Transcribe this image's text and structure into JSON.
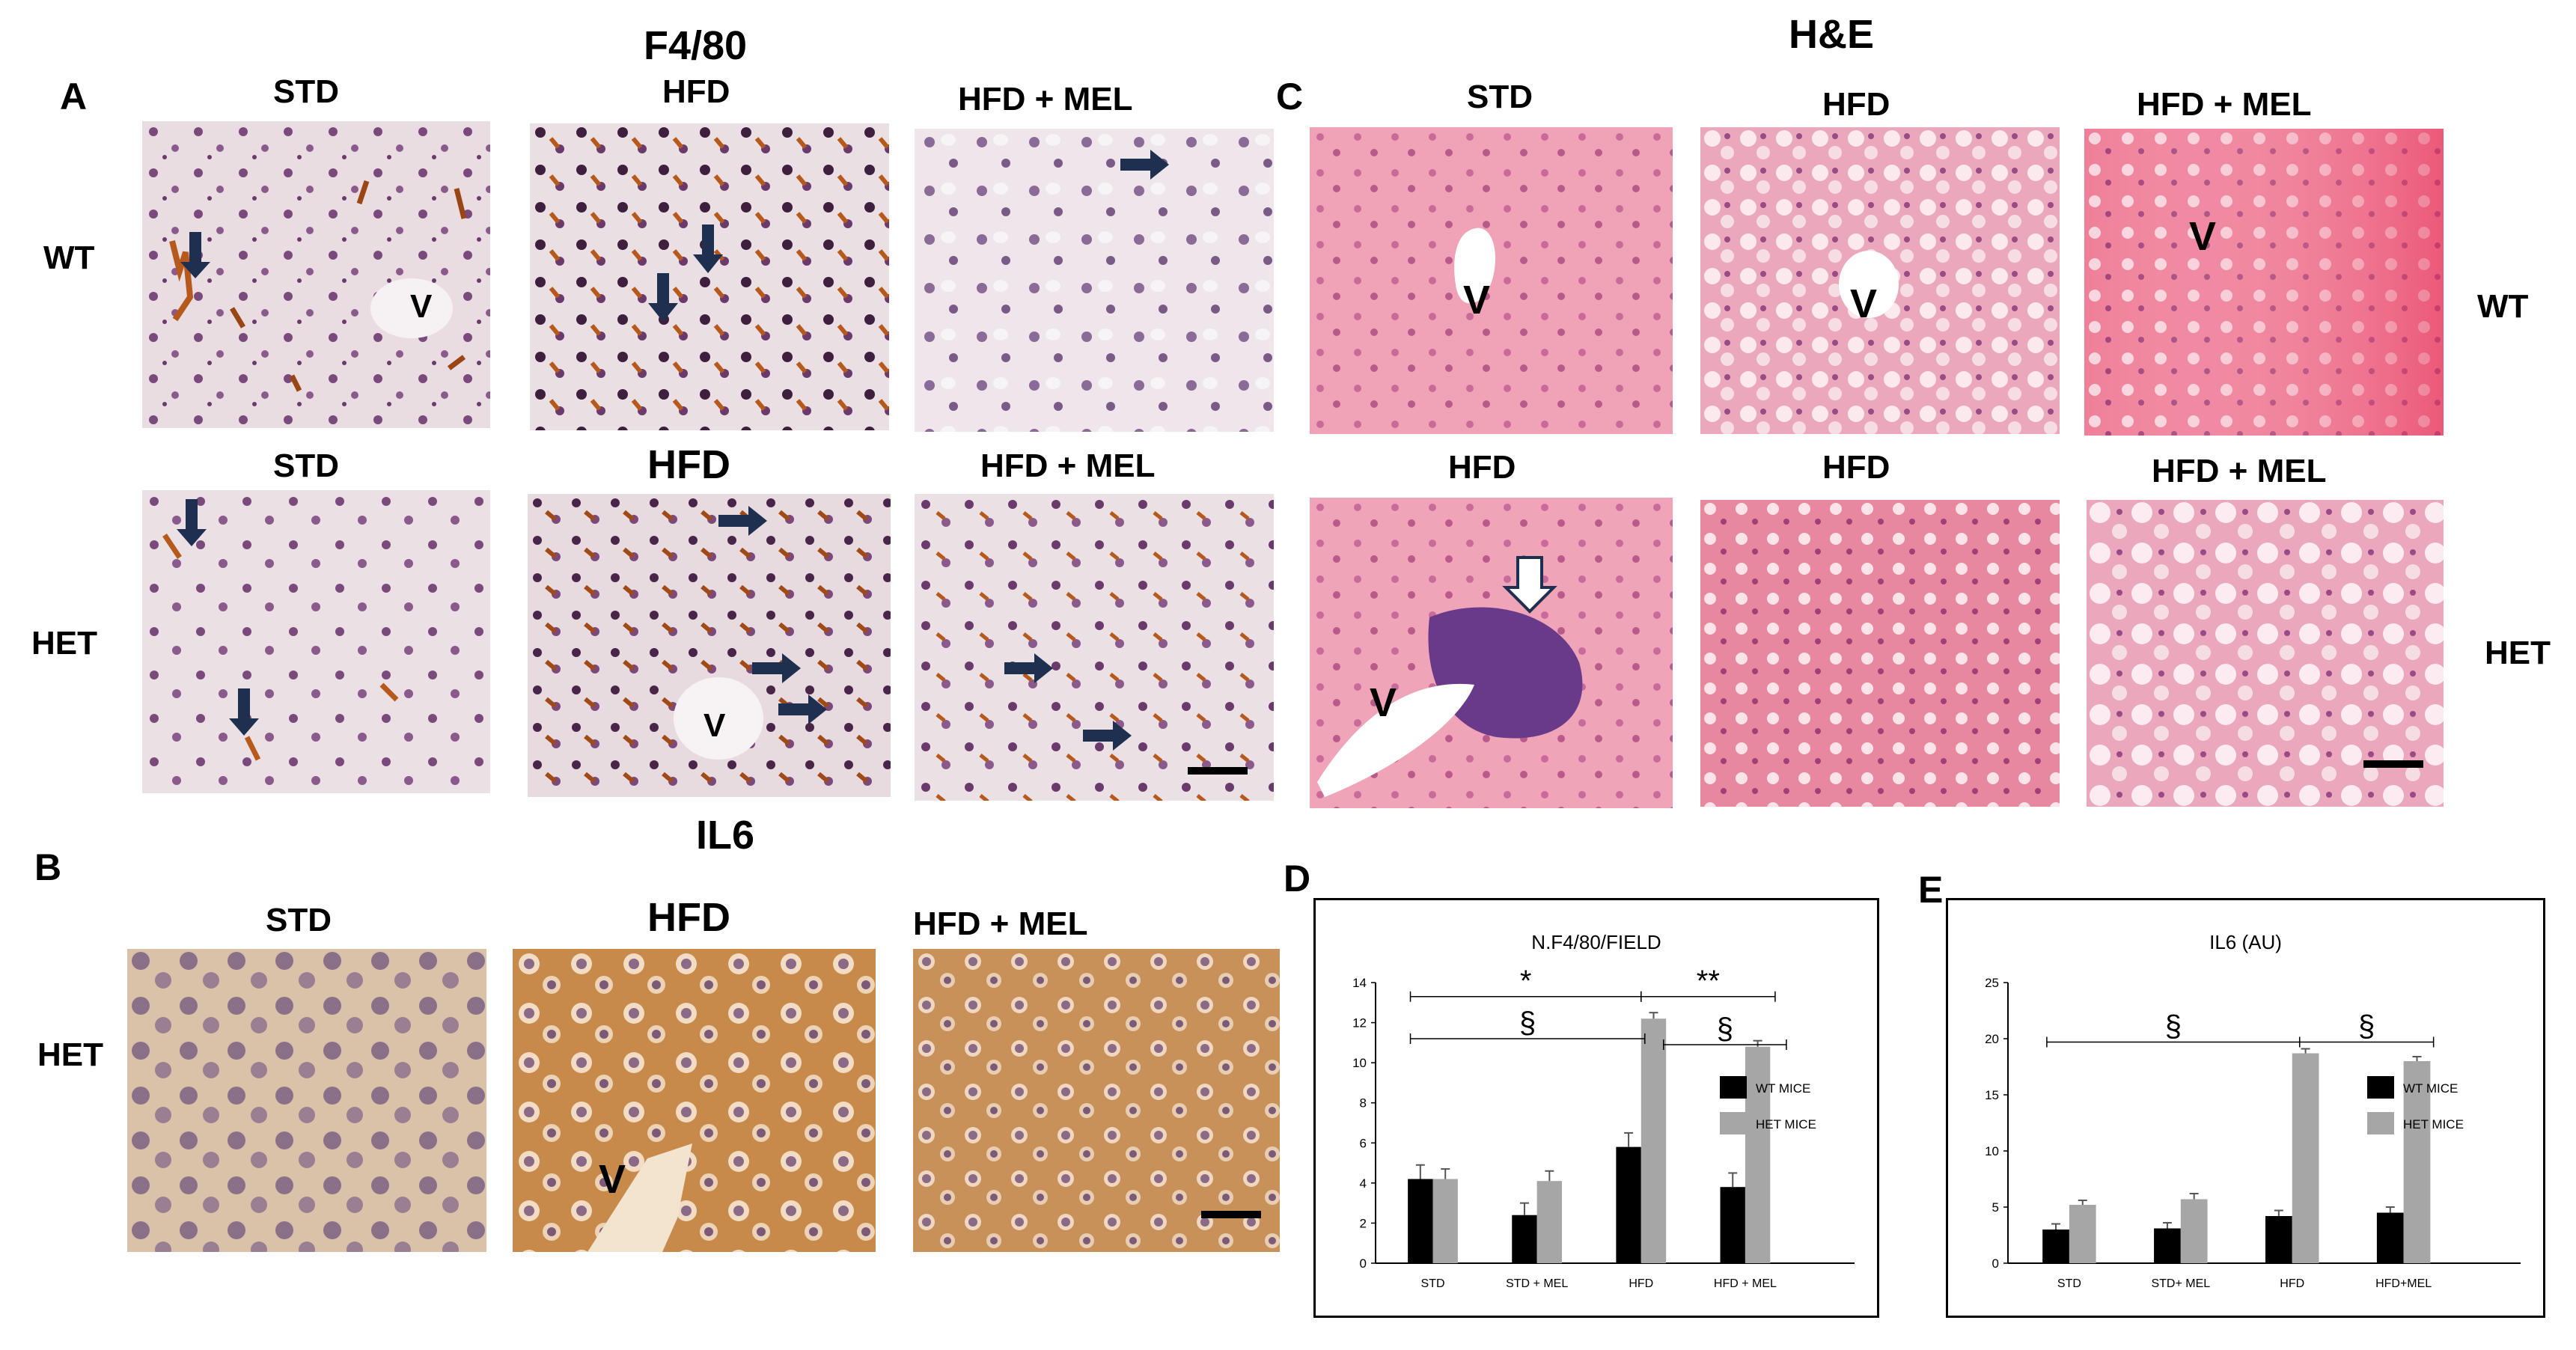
{
  "panels": {
    "A": {
      "letter": "A",
      "title": "F4/80",
      "row_labels": [
        "WT",
        "HET"
      ],
      "top_labels": [
        "STD",
        "HFD",
        "HFD + MEL"
      ],
      "bottom_labels": [
        "STD",
        "HFD",
        "HFD + MEL"
      ],
      "vessel_label": "V"
    },
    "B": {
      "letter": "B",
      "title": "IL6",
      "row_label": "HET",
      "labels": [
        "STD",
        "HFD",
        "HFD + MEL"
      ],
      "vessel_label": "V"
    },
    "C": {
      "letter": "C",
      "title": "H&E",
      "row_labels": [
        "WT",
        "HET"
      ],
      "top_labels": [
        "STD",
        "HFD",
        "HFD + MEL"
      ],
      "bottom_labels": [
        "HFD",
        "HFD",
        "HFD + MEL"
      ],
      "vessel_label": "V"
    },
    "D": {
      "letter": "D"
    },
    "E": {
      "letter": "E"
    }
  },
  "colors": {
    "ihc_background": "#e9dde2",
    "ihc_nucleus": "#7a4a7c",
    "ihc_brown": "#b55a1c",
    "il6_brown": "#c78a4a",
    "he_pink": "#f2a4b8",
    "he_nucleus": "#9a4b86",
    "wt_bar": "#000000",
    "het_bar": "#a6a6a6",
    "arrow": "#1f2f4f"
  },
  "chart_data": [
    {
      "type": "bar",
      "title": "N.F4/80/FIELD",
      "categories": [
        "STD",
        "STD + MEL",
        "HFD",
        "HFD + MEL"
      ],
      "series": [
        {
          "name": "WT MICE",
          "values": [
            4.2,
            2.4,
            5.8,
            3.8
          ],
          "errors": [
            0.7,
            0.6,
            0.7,
            0.7
          ],
          "color": "#000000"
        },
        {
          "name": "HET MICE",
          "values": [
            4.2,
            4.1,
            12.2,
            10.8
          ],
          "errors": [
            0.5,
            0.5,
            0.3,
            0.3
          ],
          "color": "#a6a6a6"
        }
      ],
      "ylim": [
        0,
        14
      ],
      "yticks": [
        0,
        2,
        4,
        6,
        8,
        10,
        12,
        14
      ],
      "significance": [
        "*",
        "**",
        "§",
        "§"
      ],
      "legend_position": "right"
    },
    {
      "type": "bar",
      "title": "IL6 (AU)",
      "categories": [
        "STD",
        "STD+ MEL",
        "HFD",
        "HFD+MEL"
      ],
      "series": [
        {
          "name": "WT MICE",
          "values": [
            3.0,
            3.1,
            4.2,
            4.5
          ],
          "errors": [
            0.5,
            0.5,
            0.5,
            0.5
          ],
          "color": "#000000"
        },
        {
          "name": "HET MICE",
          "values": [
            5.2,
            5.7,
            18.7,
            18.0
          ],
          "errors": [
            0.4,
            0.5,
            0.4,
            0.4
          ],
          "color": "#a6a6a6"
        }
      ],
      "ylim": [
        0,
        25
      ],
      "yticks": [
        0,
        5,
        10,
        15,
        20,
        25
      ],
      "significance": [
        "§",
        "§"
      ],
      "legend_position": "right"
    }
  ]
}
